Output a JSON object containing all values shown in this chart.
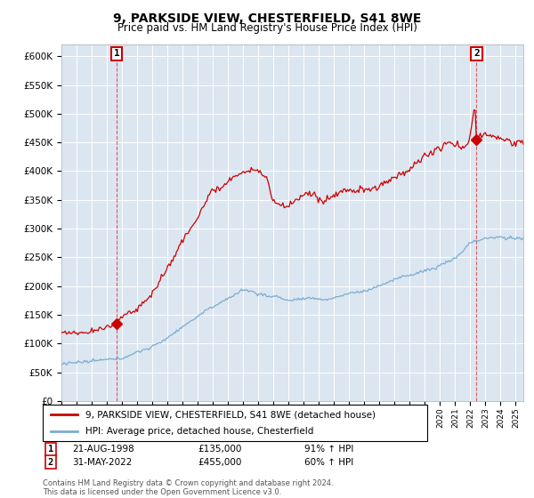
{
  "title": "9, PARKSIDE VIEW, CHESTERFIELD, S41 8WE",
  "subtitle": "Price paid vs. HM Land Registry's House Price Index (HPI)",
  "red_line_color": "#cc0000",
  "blue_line_color": "#7aadcf",
  "plot_bg_color": "#dce6f1",
  "purchase1": {
    "date": "21-AUG-1998",
    "price": 135000,
    "year": 1998.64
  },
  "purchase2": {
    "date": "31-MAY-2022",
    "price": 455000,
    "year": 2022.41
  },
  "legend_line1": "9, PARKSIDE VIEW, CHESTERFIELD, S41 8WE (detached house)",
  "legend_line2": "HPI: Average price, detached house, Chesterfield",
  "table_row1": [
    "1",
    "21-AUG-1998",
    "£135,000",
    "91% ↑ HPI"
  ],
  "table_row2": [
    "2",
    "31-MAY-2022",
    "£455,000",
    "60% ↑ HPI"
  ],
  "copyright": "Contains HM Land Registry data © Crown copyright and database right 2024.\nThis data is licensed under the Open Government Licence v3.0.",
  "ylim": [
    0,
    620000
  ],
  "yticks": [
    0,
    50000,
    100000,
    150000,
    200000,
    250000,
    300000,
    350000,
    400000,
    450000,
    500000,
    550000,
    600000
  ],
  "ytick_labels": [
    "£0",
    "£50K",
    "£100K",
    "£150K",
    "£200K",
    "£250K",
    "£300K",
    "£350K",
    "£400K",
    "£450K",
    "£500K",
    "£550K",
    "£600K"
  ],
  "xstart": 1995,
  "xend": 2025.5
}
